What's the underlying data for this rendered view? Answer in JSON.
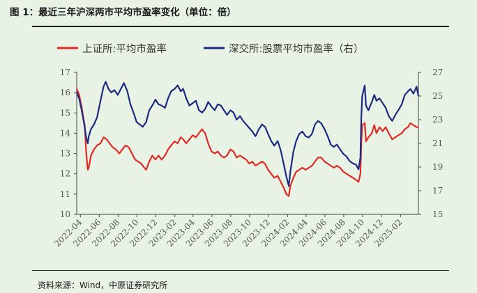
{
  "header": {
    "title": "图 1：最近三年沪深两市平均市盈率变化（单位：倍）"
  },
  "footer": {
    "source": "资料来源：Wind，中原证券研究所"
  },
  "chart_data": {
    "type": "line",
    "legend_position": "top",
    "grid": false,
    "x_tick_labels": [
      "2022-04",
      "2022-06",
      "2022-08",
      "2022-10",
      "2022-12",
      "2023-02",
      "2023-04",
      "2023-06",
      "2023-08",
      "2023-10",
      "2023-12",
      "2024-02",
      "2024-04",
      "2024-06",
      "2024-08",
      "2024-10",
      "2024-12",
      "2025-02"
    ],
    "y_left": {
      "ylim": [
        10,
        17
      ],
      "ticks": [
        10,
        11,
        12,
        13,
        14,
        15,
        16,
        17
      ]
    },
    "y_right": {
      "ylim": [
        15,
        27
      ],
      "ticks": [
        15,
        17,
        19,
        21,
        23,
        25,
        27
      ]
    },
    "x_range": [
      "2022-03-20",
      "2025-03-31"
    ],
    "series": [
      {
        "name": "上证所:平均市盈率",
        "axis": "left",
        "color": "#e02a25",
        "points": [
          [
            "2022-03-20",
            16.2
          ],
          [
            "2022-03-28",
            15.9
          ],
          [
            "2022-04-05",
            15.3
          ],
          [
            "2022-04-10",
            14.8
          ],
          [
            "2022-04-15",
            14.4
          ],
          [
            "2022-04-20",
            13.0
          ],
          [
            "2022-04-25",
            12.2
          ],
          [
            "2022-04-28",
            12.3
          ],
          [
            "2022-05-05",
            12.9
          ],
          [
            "2022-05-15",
            13.2
          ],
          [
            "2022-05-25",
            13.4
          ],
          [
            "2022-06-05",
            13.5
          ],
          [
            "2022-06-15",
            13.8
          ],
          [
            "2022-06-25",
            13.7
          ],
          [
            "2022-07-05",
            13.5
          ],
          [
            "2022-07-15",
            13.3
          ],
          [
            "2022-07-25",
            13.2
          ],
          [
            "2022-08-05",
            13.0
          ],
          [
            "2022-08-15",
            13.2
          ],
          [
            "2022-08-25",
            13.4
          ],
          [
            "2022-09-05",
            13.3
          ],
          [
            "2022-09-15",
            13.0
          ],
          [
            "2022-09-25",
            12.7
          ],
          [
            "2022-10-05",
            12.6
          ],
          [
            "2022-10-15",
            12.5
          ],
          [
            "2022-10-25",
            12.3
          ],
          [
            "2022-10-31",
            12.2
          ],
          [
            "2022-11-10",
            12.6
          ],
          [
            "2022-11-20",
            12.9
          ],
          [
            "2022-11-30",
            12.7
          ],
          [
            "2022-12-10",
            12.9
          ],
          [
            "2022-12-20",
            12.7
          ],
          [
            "2022-12-31",
            12.9
          ],
          [
            "2023-01-10",
            13.2
          ],
          [
            "2023-01-20",
            13.4
          ],
          [
            "2023-01-31",
            13.6
          ],
          [
            "2023-02-10",
            13.5
          ],
          [
            "2023-02-20",
            13.8
          ],
          [
            "2023-02-28",
            13.7
          ],
          [
            "2023-03-10",
            13.5
          ],
          [
            "2023-03-20",
            13.7
          ],
          [
            "2023-03-31",
            13.9
          ],
          [
            "2023-04-10",
            13.8
          ],
          [
            "2023-04-20",
            14.0
          ],
          [
            "2023-04-30",
            14.2
          ],
          [
            "2023-05-10",
            14.0
          ],
          [
            "2023-05-20",
            13.5
          ],
          [
            "2023-05-31",
            13.1
          ],
          [
            "2023-06-10",
            13.0
          ],
          [
            "2023-06-20",
            13.1
          ],
          [
            "2023-06-30",
            12.9
          ],
          [
            "2023-07-10",
            12.8
          ],
          [
            "2023-07-20",
            12.9
          ],
          [
            "2023-07-31",
            13.2
          ],
          [
            "2023-08-10",
            13.1
          ],
          [
            "2023-08-20",
            12.8
          ],
          [
            "2023-08-31",
            12.9
          ],
          [
            "2023-09-10",
            12.8
          ],
          [
            "2023-09-20",
            12.7
          ],
          [
            "2023-09-30",
            12.5
          ],
          [
            "2023-10-10",
            12.6
          ],
          [
            "2023-10-20",
            12.4
          ],
          [
            "2023-10-31",
            12.5
          ],
          [
            "2023-11-10",
            12.6
          ],
          [
            "2023-11-20",
            12.5
          ],
          [
            "2023-11-30",
            12.2
          ],
          [
            "2023-12-10",
            12.0
          ],
          [
            "2023-12-20",
            11.8
          ],
          [
            "2023-12-31",
            11.9
          ],
          [
            "2024-01-10",
            11.6
          ],
          [
            "2024-01-20",
            11.3
          ],
          [
            "2024-01-28",
            11.0
          ],
          [
            "2024-02-05",
            10.9
          ],
          [
            "2024-02-10",
            11.4
          ],
          [
            "2024-02-20",
            11.8
          ],
          [
            "2024-02-29",
            12.1
          ],
          [
            "2024-03-10",
            12.2
          ],
          [
            "2024-03-20",
            12.3
          ],
          [
            "2024-03-31",
            12.2
          ],
          [
            "2024-04-10",
            12.3
          ],
          [
            "2024-04-20",
            12.4
          ],
          [
            "2024-04-30",
            12.6
          ],
          [
            "2024-05-10",
            12.8
          ],
          [
            "2024-05-20",
            12.8
          ],
          [
            "2024-05-31",
            12.6
          ],
          [
            "2024-06-10",
            12.5
          ],
          [
            "2024-06-20",
            12.4
          ],
          [
            "2024-06-30",
            12.3
          ],
          [
            "2024-07-10",
            12.4
          ],
          [
            "2024-07-20",
            12.3
          ],
          [
            "2024-07-31",
            12.1
          ],
          [
            "2024-08-10",
            12.0
          ],
          [
            "2024-08-20",
            11.9
          ],
          [
            "2024-08-31",
            11.8
          ],
          [
            "2024-09-10",
            11.7
          ],
          [
            "2024-09-18",
            11.6
          ],
          [
            "2024-09-24",
            12.0
          ],
          [
            "2024-09-27",
            13.5
          ],
          [
            "2024-09-30",
            14.4
          ],
          [
            "2024-10-08",
            14.5
          ],
          [
            "2024-10-12",
            13.6
          ],
          [
            "2024-10-20",
            13.8
          ],
          [
            "2024-10-31",
            14.0
          ],
          [
            "2024-11-08",
            14.4
          ],
          [
            "2024-11-15",
            14.0
          ],
          [
            "2024-11-25",
            14.3
          ],
          [
            "2024-12-05",
            14.1
          ],
          [
            "2024-12-15",
            14.3
          ],
          [
            "2024-12-25",
            14.0
          ],
          [
            "2025-01-05",
            13.7
          ],
          [
            "2025-01-15",
            13.8
          ],
          [
            "2025-01-25",
            13.9
          ],
          [
            "2025-02-05",
            14.0
          ],
          [
            "2025-02-15",
            14.2
          ],
          [
            "2025-02-25",
            14.3
          ],
          [
            "2025-03-05",
            14.5
          ],
          [
            "2025-03-15",
            14.4
          ],
          [
            "2025-03-25",
            14.3
          ],
          [
            "2025-03-31",
            14.3
          ]
        ]
      },
      {
        "name": "深交所:股票平均市盈率（右）",
        "axis": "right",
        "color": "#1b2a80",
        "points": [
          [
            "2022-03-20",
            25.3
          ],
          [
            "2022-03-28",
            24.8
          ],
          [
            "2022-04-05",
            23.8
          ],
          [
            "2022-04-12",
            22.8
          ],
          [
            "2022-04-20",
            21.5
          ],
          [
            "2022-04-25",
            21.0
          ],
          [
            "2022-04-28",
            21.6
          ],
          [
            "2022-05-05",
            22.2
          ],
          [
            "2022-05-15",
            22.6
          ],
          [
            "2022-05-25",
            23.2
          ],
          [
            "2022-06-05",
            24.6
          ],
          [
            "2022-06-15",
            25.8
          ],
          [
            "2022-06-22",
            26.2
          ],
          [
            "2022-07-01",
            25.6
          ],
          [
            "2022-07-10",
            25.3
          ],
          [
            "2022-07-20",
            25.5
          ],
          [
            "2022-07-31",
            25.1
          ],
          [
            "2022-08-10",
            25.6
          ],
          [
            "2022-08-20",
            26.1
          ],
          [
            "2022-08-31",
            25.4
          ],
          [
            "2022-09-10",
            24.3
          ],
          [
            "2022-09-20",
            23.6
          ],
          [
            "2022-09-30",
            22.8
          ],
          [
            "2022-10-10",
            22.6
          ],
          [
            "2022-10-20",
            22.4
          ],
          [
            "2022-10-31",
            22.8
          ],
          [
            "2022-11-10",
            23.8
          ],
          [
            "2022-11-20",
            24.2
          ],
          [
            "2022-11-30",
            24.7
          ],
          [
            "2022-12-10",
            24.3
          ],
          [
            "2022-12-20",
            24.2
          ],
          [
            "2022-12-31",
            24.0
          ],
          [
            "2023-01-10",
            24.8
          ],
          [
            "2023-01-20",
            25.4
          ],
          [
            "2023-01-31",
            25.6
          ],
          [
            "2023-02-10",
            25.9
          ],
          [
            "2023-02-20",
            25.4
          ],
          [
            "2023-02-28",
            25.6
          ],
          [
            "2023-03-10",
            24.8
          ],
          [
            "2023-03-20",
            24.2
          ],
          [
            "2023-03-31",
            24.4
          ],
          [
            "2023-04-10",
            24.6
          ],
          [
            "2023-04-20",
            23.8
          ],
          [
            "2023-04-30",
            23.6
          ],
          [
            "2023-05-10",
            23.9
          ],
          [
            "2023-05-20",
            24.5
          ],
          [
            "2023-05-31",
            24.1
          ],
          [
            "2023-06-10",
            23.8
          ],
          [
            "2023-06-20",
            24.3
          ],
          [
            "2023-06-30",
            24.2
          ],
          [
            "2023-07-10",
            23.8
          ],
          [
            "2023-07-20",
            23.4
          ],
          [
            "2023-07-31",
            23.8
          ],
          [
            "2023-08-10",
            23.6
          ],
          [
            "2023-08-20",
            23.0
          ],
          [
            "2023-08-31",
            23.3
          ],
          [
            "2023-09-10",
            22.9
          ],
          [
            "2023-09-20",
            22.6
          ],
          [
            "2023-09-30",
            22.3
          ],
          [
            "2023-10-10",
            22.0
          ],
          [
            "2023-10-20",
            21.6
          ],
          [
            "2023-10-31",
            22.2
          ],
          [
            "2023-11-10",
            22.6
          ],
          [
            "2023-11-20",
            22.4
          ],
          [
            "2023-11-30",
            21.8
          ],
          [
            "2023-12-10",
            21.2
          ],
          [
            "2023-12-20",
            20.8
          ],
          [
            "2023-12-31",
            21.2
          ],
          [
            "2024-01-10",
            20.4
          ],
          [
            "2024-01-20",
            19.2
          ],
          [
            "2024-01-28",
            18.2
          ],
          [
            "2024-02-05",
            17.4
          ],
          [
            "2024-02-10",
            18.6
          ],
          [
            "2024-02-20",
            20.3
          ],
          [
            "2024-02-29",
            21.2
          ],
          [
            "2024-03-10",
            21.8
          ],
          [
            "2024-03-20",
            22.0
          ],
          [
            "2024-03-31",
            21.6
          ],
          [
            "2024-04-10",
            21.5
          ],
          [
            "2024-04-20",
            21.8
          ],
          [
            "2024-04-30",
            22.6
          ],
          [
            "2024-05-10",
            22.9
          ],
          [
            "2024-05-20",
            22.7
          ],
          [
            "2024-05-31",
            22.2
          ],
          [
            "2024-06-10",
            21.6
          ],
          [
            "2024-06-20",
            20.9
          ],
          [
            "2024-06-30",
            20.7
          ],
          [
            "2024-07-10",
            20.9
          ],
          [
            "2024-07-20",
            20.5
          ],
          [
            "2024-07-31",
            20.1
          ],
          [
            "2024-08-10",
            19.9
          ],
          [
            "2024-08-20",
            19.5
          ],
          [
            "2024-08-31",
            19.3
          ],
          [
            "2024-09-10",
            19.2
          ],
          [
            "2024-09-18",
            18.8
          ],
          [
            "2024-09-24",
            19.8
          ],
          [
            "2024-09-27",
            23.2
          ],
          [
            "2024-09-30",
            25.0
          ],
          [
            "2024-10-08",
            25.9
          ],
          [
            "2024-10-12",
            24.2
          ],
          [
            "2024-10-20",
            23.8
          ],
          [
            "2024-10-31",
            24.5
          ],
          [
            "2024-11-08",
            25.1
          ],
          [
            "2024-11-15",
            24.6
          ],
          [
            "2024-11-25",
            24.8
          ],
          [
            "2024-12-05",
            24.4
          ],
          [
            "2024-12-15",
            24.0
          ],
          [
            "2024-12-25",
            23.3
          ],
          [
            "2025-01-05",
            22.9
          ],
          [
            "2025-01-15",
            23.4
          ],
          [
            "2025-01-25",
            23.8
          ],
          [
            "2025-02-05",
            24.3
          ],
          [
            "2025-02-15",
            25.1
          ],
          [
            "2025-02-25",
            25.4
          ],
          [
            "2025-03-05",
            25.6
          ],
          [
            "2025-03-15",
            25.2
          ],
          [
            "2025-03-25",
            25.8
          ],
          [
            "2025-03-31",
            25.0
          ]
        ]
      }
    ]
  }
}
